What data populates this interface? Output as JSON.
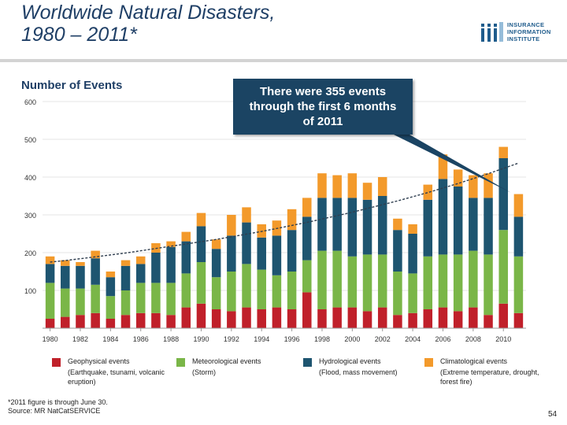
{
  "slide": {
    "title_line1": "Worldwide Natural Disasters,",
    "title_line2": "1980 – 2011*",
    "logo_line1": "INSURANCE",
    "logo_line2": "INFORMATION",
    "logo_line3": "INSTITUTE",
    "y_axis_title": "Number of Events",
    "callout": "There were 355 events through the first 6 months of 2011",
    "footnote_line1": "*2011 figure is through June 30.",
    "footnote_line2": "Source: MR NatCatSERVICE",
    "page_number": "54"
  },
  "legend": [
    {
      "name": "Geophysical events",
      "desc": "(Earthquake, tsunami, volcanic eruption)",
      "color": "#c0202a"
    },
    {
      "name": "Meteorological events",
      "desc": "(Storm)",
      "color": "#7ab648"
    },
    {
      "name": "Hydrological events",
      "desc": "(Flood, mass movement)",
      "color": "#1e5570"
    },
    {
      "name": "Climatological events",
      "desc": "(Extreme temperature, drought, forest fire)",
      "color": "#f39a2b"
    }
  ],
  "chart_data": {
    "type": "bar",
    "stacked": true,
    "ylim": [
      0,
      600
    ],
    "yticks": [
      100,
      200,
      300,
      400,
      500,
      600
    ],
    "xtick_labels": [
      "1980",
      "1982",
      "1984",
      "1986",
      "1988",
      "1990",
      "1992",
      "1994",
      "1996",
      "1998",
      "2000",
      "2002",
      "2004",
      "2006",
      "2008",
      "2010"
    ],
    "categories": [
      "1980",
      "1981",
      "1982",
      "1983",
      "1984",
      "1985",
      "1986",
      "1987",
      "1988",
      "1989",
      "1990",
      "1991",
      "1992",
      "1993",
      "1994",
      "1995",
      "1996",
      "1997",
      "1998",
      "1999",
      "2000",
      "2001",
      "2002",
      "2003",
      "2004",
      "2005",
      "2006",
      "2007",
      "2008",
      "2009",
      "2010",
      "2011"
    ],
    "series": [
      {
        "name": "Geophysical events",
        "color": "#c0202a",
        "values": [
          25,
          30,
          35,
          40,
          25,
          35,
          40,
          40,
          35,
          55,
          65,
          50,
          45,
          55,
          50,
          55,
          50,
          95,
          50,
          55,
          55,
          45,
          55,
          35,
          40,
          50,
          55,
          45,
          55,
          35,
          65,
          40
        ]
      },
      {
        "name": "Meteorological events",
        "color": "#7ab648",
        "values": [
          95,
          75,
          70,
          75,
          60,
          65,
          80,
          80,
          85,
          90,
          110,
          85,
          105,
          115,
          105,
          85,
          100,
          85,
          155,
          150,
          135,
          150,
          140,
          115,
          105,
          140,
          140,
          150,
          150,
          160,
          195,
          150
        ]
      },
      {
        "name": "Hydrological events",
        "color": "#1e5570",
        "values": [
          50,
          60,
          60,
          70,
          50,
          65,
          50,
          80,
          95,
          85,
          95,
          75,
          95,
          110,
          85,
          105,
          110,
          115,
          140,
          140,
          155,
          145,
          155,
          110,
          105,
          150,
          200,
          180,
          140,
          150,
          190,
          105
        ]
      },
      {
        "name": "Climatological events",
        "color": "#f39a2b",
        "values": [
          20,
          15,
          10,
          20,
          15,
          15,
          20,
          25,
          15,
          25,
          35,
          25,
          55,
          40,
          35,
          40,
          55,
          50,
          65,
          60,
          65,
          45,
          50,
          30,
          25,
          40,
          65,
          45,
          60,
          65,
          30,
          60
        ]
      }
    ],
    "trend": [
      175,
      179,
      184,
      189,
      194,
      199,
      205,
      211,
      217,
      223,
      229,
      235,
      242,
      249,
      256,
      264,
      272,
      280,
      289,
      298,
      307,
      317,
      327,
      337,
      348,
      359,
      371,
      383,
      396,
      409,
      423,
      437
    ],
    "trend_color": "#2f3e4f"
  }
}
